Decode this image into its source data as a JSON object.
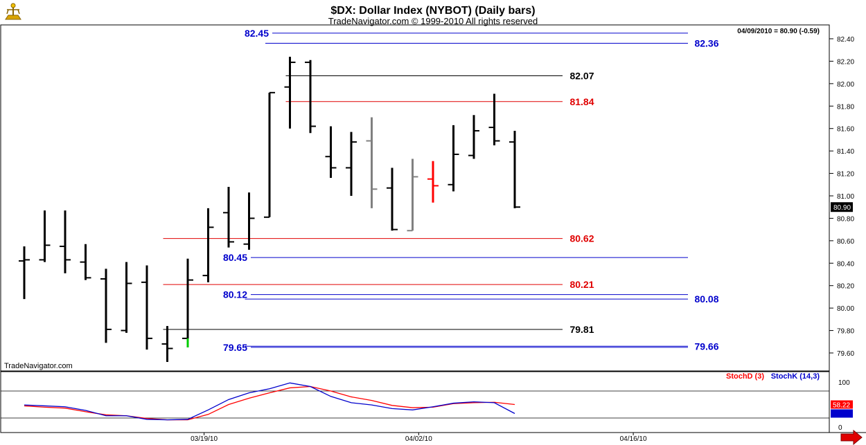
{
  "header": {
    "title": "$DX:  Dollar Index (NYBOT)  (Daily bars)",
    "subtitle": "TradeNavigator.com © 1999-2010 All rights reserved",
    "last_bar_info": "04/09/2010 = 80.90 (-0.59)",
    "watermark": "TradeNavigator.com"
  },
  "chart_data": [
    {
      "type": "ohlc",
      "title": "$DX:  Dollar Index (NYBOT)  (Daily bars)",
      "ylim": [
        79.5,
        82.5
      ],
      "y_ticks": [
        "82.40",
        "82.20",
        "82.00",
        "81.80",
        "81.60",
        "81.40",
        "81.20",
        "81.00",
        "80.80",
        "80.60",
        "80.40",
        "80.20",
        "80.00",
        "79.80",
        "79.60"
      ],
      "current_price_label": "80.90",
      "bars": [
        {
          "o": 80.42,
          "h": 80.55,
          "l": 80.08,
          "c": 80.43,
          "color": "#000000"
        },
        {
          "o": 80.43,
          "h": 80.87,
          "l": 80.41,
          "c": 80.56,
          "color": "#000000"
        },
        {
          "o": 80.55,
          "h": 80.87,
          "l": 80.31,
          "c": 80.43,
          "color": "#000000"
        },
        {
          "o": 80.41,
          "h": 80.57,
          "l": 80.25,
          "c": 80.27,
          "color": "#000000"
        },
        {
          "o": 80.26,
          "h": 80.35,
          "l": 79.69,
          "c": 79.81,
          "color": "#000000"
        },
        {
          "o": 79.8,
          "h": 80.41,
          "l": 79.78,
          "c": 80.22,
          "color": "#000000"
        },
        {
          "o": 80.23,
          "h": 80.38,
          "l": 79.63,
          "c": 79.73,
          "color": "#000000"
        },
        {
          "o": 79.68,
          "h": 79.84,
          "l": 79.52,
          "c": 79.64,
          "color": "#000000"
        },
        {
          "o": 79.73,
          "h": 80.44,
          "l": 79.65,
          "c": 80.25,
          "color": "#000000"
        },
        {
          "o": 80.29,
          "h": 80.89,
          "l": 80.23,
          "c": 80.72,
          "color": "#000000"
        },
        {
          "o": 80.85,
          "h": 81.08,
          "l": 80.54,
          "c": 80.59,
          "color": "#000000"
        },
        {
          "o": 80.57,
          "h": 81.03,
          "l": 80.52,
          "c": 80.8,
          "color": "#000000"
        },
        {
          "o": 80.81,
          "h": 81.92,
          "l": 80.81,
          "c": 81.92,
          "color": "#000000"
        },
        {
          "o": 81.97,
          "h": 82.24,
          "l": 81.6,
          "c": 82.19,
          "color": "#000000"
        },
        {
          "o": 82.19,
          "h": 82.21,
          "l": 81.56,
          "c": 81.62,
          "color": "#000000"
        },
        {
          "o": 81.35,
          "h": 81.62,
          "l": 81.16,
          "c": 81.25,
          "color": "#000000"
        },
        {
          "o": 81.25,
          "h": 81.57,
          "l": 81.0,
          "c": 81.48,
          "color": "#000000"
        },
        {
          "o": 81.49,
          "h": 81.7,
          "l": 80.89,
          "c": 81.06,
          "color": "#808080"
        },
        {
          "o": 81.07,
          "h": 81.25,
          "l": 80.69,
          "c": 80.7,
          "color": "#000000"
        },
        {
          "o": 80.69,
          "h": 81.33,
          "l": 80.69,
          "c": 81.17,
          "color": "#808080"
        },
        {
          "o": 81.15,
          "h": 81.31,
          "l": 80.94,
          "c": 81.09,
          "color": "#ff0000"
        },
        {
          "o": 81.1,
          "h": 81.63,
          "l": 81.04,
          "c": 81.37,
          "color": "#000000"
        },
        {
          "o": 81.36,
          "h": 81.72,
          "l": 81.33,
          "c": 81.58,
          "color": "#000000"
        },
        {
          "o": 81.61,
          "h": 81.91,
          "l": 81.45,
          "c": 81.49,
          "color": "#000000"
        },
        {
          "o": 81.48,
          "h": 81.58,
          "l": 80.89,
          "c": 80.9,
          "color": "#000000"
        }
      ],
      "levels": [
        {
          "value": 82.45,
          "label": "82.45",
          "color": "#0000cc",
          "label_side": "left",
          "from_bar": "left"
        },
        {
          "value": 82.36,
          "label": "82.36",
          "color": "#0000cc",
          "label_side": "right",
          "from_bar": 12
        },
        {
          "value": 82.07,
          "label": "82.07",
          "color": "#000000",
          "label_side": "mid",
          "from_bar": 13
        },
        {
          "value": 81.84,
          "label": "81.84",
          "color": "#e00000",
          "label_side": "mid",
          "from_bar": 13
        },
        {
          "value": 80.62,
          "label": "80.62",
          "color": "#e00000",
          "label_side": "mid",
          "from_bar": 7
        },
        {
          "value": 80.45,
          "label": "80.45",
          "color": "#0000cc",
          "label_side": "left",
          "from_bar": "left"
        },
        {
          "value": 80.21,
          "label": "80.21",
          "color": "#e00000",
          "label_side": "mid",
          "from_bar": 7
        },
        {
          "value": 80.12,
          "label": "80.12",
          "color": "#0000cc",
          "label_side": "left",
          "from_bar": "left"
        },
        {
          "value": 80.08,
          "label": "80.08",
          "color": "#0000cc",
          "label_side": "right",
          "from_bar": 11
        },
        {
          "value": 79.81,
          "label": "79.81",
          "color": "#000000",
          "label_side": "mid",
          "from_bar": 7
        },
        {
          "value": 79.65,
          "label": "79.65",
          "color": "#0000cc",
          "label_side": "left",
          "from_bar": "left"
        },
        {
          "value": 79.66,
          "label": "79.66",
          "color": "#0000cc",
          "label_side": "right",
          "from_bar": 11
        }
      ]
    },
    {
      "type": "line",
      "title": "",
      "ylim": [
        0,
        100
      ],
      "y_ticks": [
        "100",
        "0"
      ],
      "reference_lines": [
        80,
        20
      ],
      "current_value_label": "58.22",
      "x_tick_labels": [
        "03/19/10",
        "04/02/10",
        "04/16/10"
      ],
      "x_tick_bars": [
        8.8,
        19.3,
        29.8
      ],
      "series": [
        {
          "name": "StochD (3)",
          "color": "#ff0000",
          "values": [
            47,
            44,
            42,
            34,
            27,
            25,
            19,
            16,
            16,
            28,
            50,
            64,
            76,
            87,
            90,
            80,
            67,
            59,
            48,
            43,
            44,
            52,
            54,
            55,
            50
          ]
        },
        {
          "name": "StochK (14,3)",
          "color": "#0000cc",
          "values": [
            49,
            47,
            45,
            37,
            25,
            25,
            17,
            16,
            17,
            38,
            61,
            76,
            85,
            98,
            90,
            68,
            54,
            49,
            41,
            38,
            45,
            53,
            56,
            54,
            30
          ]
        }
      ]
    }
  ]
}
